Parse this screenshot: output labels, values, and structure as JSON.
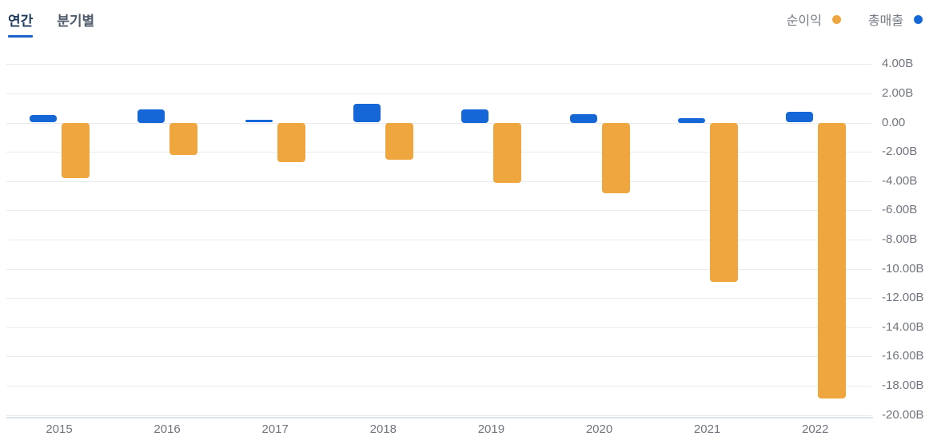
{
  "tabs": [
    {
      "label": "연간",
      "active": true
    },
    {
      "label": "분기별",
      "active": false
    }
  ],
  "legend": [
    {
      "label": "순이익",
      "color": "#f0a63e"
    },
    {
      "label": "총매출",
      "color": "#1567d8"
    }
  ],
  "colors": {
    "revenue_blue": "#1567d8",
    "net_income_orange": "#f0a63e",
    "tab_active": "#1e3a5e",
    "tab_inactive": "#4f5b6b",
    "tab_underline": "#1b63c8",
    "grid": "#e9ebee",
    "axis_line": "#d9e1ec",
    "axis_text": "#70757d"
  },
  "chart_data": {
    "type": "bar",
    "title": "",
    "categories": [
      "2015",
      "2016",
      "2017",
      "2018",
      "2019",
      "2020",
      "2021",
      "2022"
    ],
    "series": [
      {
        "name": "총매출",
        "key": "revenue",
        "color": "#1567d8",
        "values": [
          0.5,
          0.9,
          0.2,
          1.3,
          0.9,
          0.6,
          0.3,
          0.75
        ]
      },
      {
        "name": "순이익",
        "key": "netincome",
        "color": "#f0a63e",
        "values": [
          -3.8,
          -2.2,
          -2.7,
          -2.55,
          -4.15,
          -4.85,
          -10.9,
          -18.9
        ]
      }
    ],
    "unit": "B",
    "ylim": [
      -20,
      4
    ],
    "y_tick_step": 2,
    "y_ticks": [
      {
        "value": 4,
        "label": "4.00B"
      },
      {
        "value": 2,
        "label": "2.00B"
      },
      {
        "value": 0,
        "label": "0.00"
      },
      {
        "value": -2,
        "label": "-2.00B"
      },
      {
        "value": -4,
        "label": "-4.00B"
      },
      {
        "value": -6,
        "label": "-6.00B"
      },
      {
        "value": -8,
        "label": "-8.00B"
      },
      {
        "value": -10,
        "label": "-10.00B"
      },
      {
        "value": -12,
        "label": "-12.00B"
      },
      {
        "value": -14,
        "label": "-14.00B"
      },
      {
        "value": -16,
        "label": "-16.00B"
      },
      {
        "value": -18,
        "label": "-18.00B"
      },
      {
        "value": -20,
        "label": "-20.00B"
      }
    ],
    "grid": true,
    "legend_position": "top-right"
  }
}
